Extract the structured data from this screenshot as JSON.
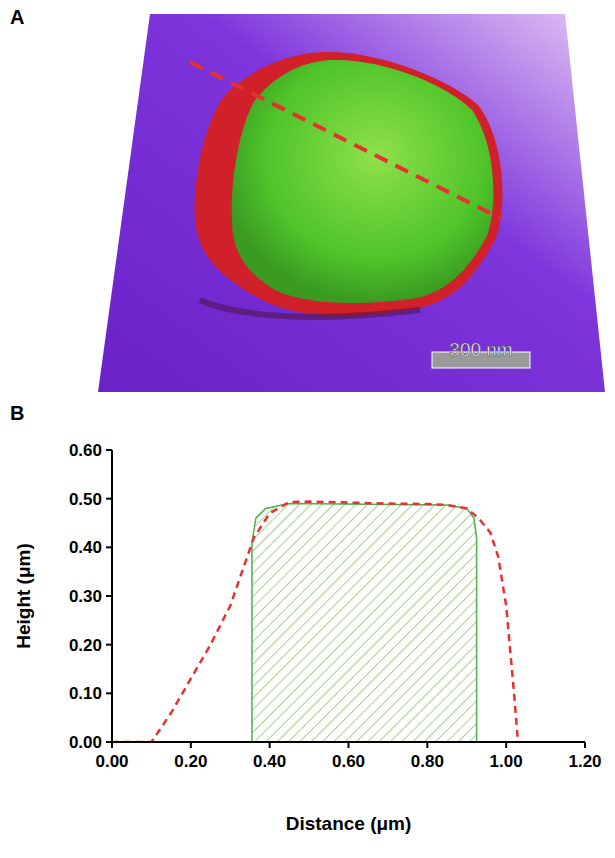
{
  "image_panel": {
    "panel_label": "A",
    "scale_bar_label": "300 nm"
  },
  "chart_data": {
    "panel_label": "B",
    "type": "line",
    "xlabel": "Distance (μm)",
    "ylabel": "Height (μm)",
    "xlim": [
      0,
      1.2
    ],
    "ylim": [
      0,
      0.6
    ],
    "xticks": [
      {
        "value": 0,
        "label": "0.00"
      },
      {
        "value": 0.2,
        "label": "0.20"
      },
      {
        "value": 0.4,
        "label": "0.40"
      },
      {
        "value": 0.6,
        "label": "0.60"
      },
      {
        "value": 0.8,
        "label": "0.80"
      },
      {
        "value": 1.0,
        "label": "1.00"
      },
      {
        "value": 1.2,
        "label": "1.20"
      }
    ],
    "yticks": [
      {
        "value": 0,
        "label": "0.00"
      },
      {
        "value": 0.1,
        "label": "0.10"
      },
      {
        "value": 0.2,
        "label": "0.20"
      },
      {
        "value": 0.3,
        "label": "0.30"
      },
      {
        "value": 0.4,
        "label": "0.40"
      },
      {
        "value": 0.5,
        "label": "0.50"
      },
      {
        "value": 0.6,
        "label": "0.60"
      }
    ],
    "series": [
      {
        "type": "line",
        "color": "#e8312f",
        "line_style": "dashed",
        "x": [
          0,
          0.1,
          0.15,
          0.2,
          0.25,
          0.3,
          0.33,
          0.36,
          0.4,
          0.45,
          0.5,
          0.6,
          0.7,
          0.8,
          0.85,
          0.9,
          0.93,
          0.96,
          0.98,
          1.0,
          1.02,
          1.03
        ],
        "values": [
          0,
          0,
          0.06,
          0.13,
          0.2,
          0.28,
          0.35,
          0.42,
          0.47,
          0.493,
          0.494,
          0.492,
          0.49,
          0.489,
          0.487,
          0.48,
          0.46,
          0.43,
          0.38,
          0.28,
          0.1,
          0
        ]
      },
      {
        "type": "area",
        "color": "#4caf50",
        "x": [
          0.355,
          0.355,
          0.365,
          0.39,
          0.45,
          0.85,
          0.9,
          0.918,
          0.925,
          0.925
        ],
        "values": [
          0,
          0.41,
          0.46,
          0.48,
          0.49,
          0.487,
          0.48,
          0.46,
          0.42,
          0
        ]
      }
    ]
  }
}
